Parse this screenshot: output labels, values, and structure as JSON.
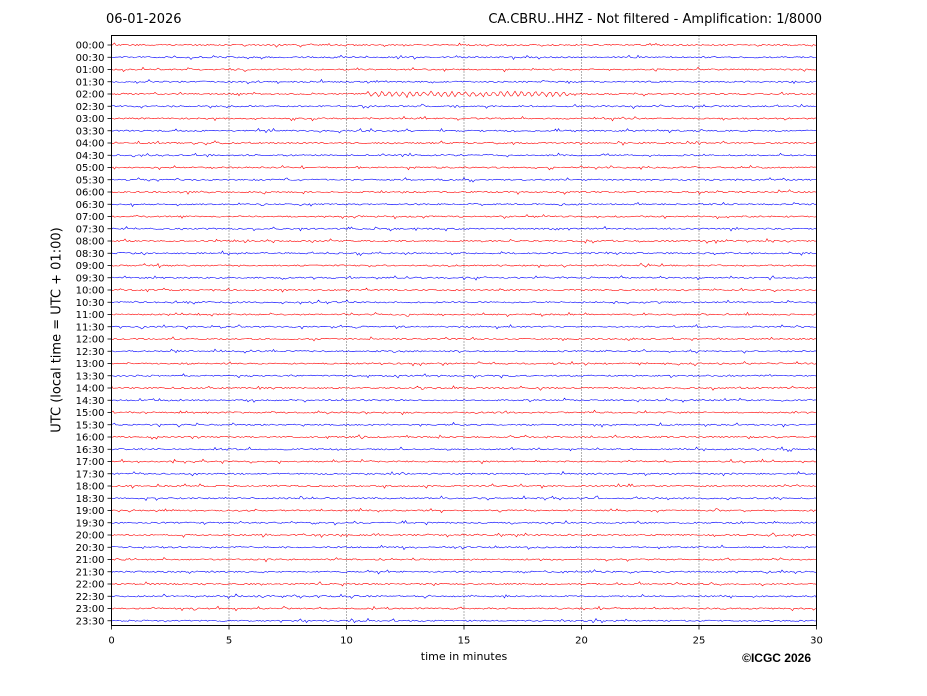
{
  "header": {
    "date": "06-01-2026",
    "station": "CA.CBRU..HHZ - Not filtered - Amplification: 1/8000"
  },
  "footer": {
    "copyright": "©ICGC 2026"
  },
  "chart_data": {
    "type": "line",
    "title": "CA.CBRU..HHZ - Not filtered - Amplification: 1/8000",
    "xlabel": "time in minutes",
    "ylabel": "UTC (local time = UTC + 01:00)",
    "xlim": [
      0,
      30
    ],
    "x_ticks": [
      0,
      5,
      10,
      15,
      20,
      25,
      30
    ],
    "y_tick_labels": [
      "00:00",
      "00:30",
      "01:00",
      "01:30",
      "02:00",
      "02:30",
      "03:00",
      "03:30",
      "04:00",
      "04:30",
      "05:00",
      "05:30",
      "06:00",
      "06:30",
      "07:00",
      "07:30",
      "08:00",
      "08:30",
      "09:00",
      "09:30",
      "10:00",
      "10:30",
      "11:00",
      "11:30",
      "12:00",
      "12:30",
      "13:00",
      "13:30",
      "14:00",
      "14:30",
      "15:00",
      "15:30",
      "16:00",
      "16:30",
      "17:00",
      "17:30",
      "18:00",
      "18:30",
      "19:00",
      "19:30",
      "20:00",
      "20:30",
      "21:00",
      "21:30",
      "22:00",
      "22:30",
      "23:00",
      "23:30"
    ],
    "series_colors": [
      "#ff0000",
      "#0000ff"
    ],
    "grid": "vertical dotted at x ticks",
    "annotations": [
      {
        "trace": "02:00",
        "x_start": 10.8,
        "x_end": 19.5,
        "description": "oscillating signal"
      }
    ]
  }
}
